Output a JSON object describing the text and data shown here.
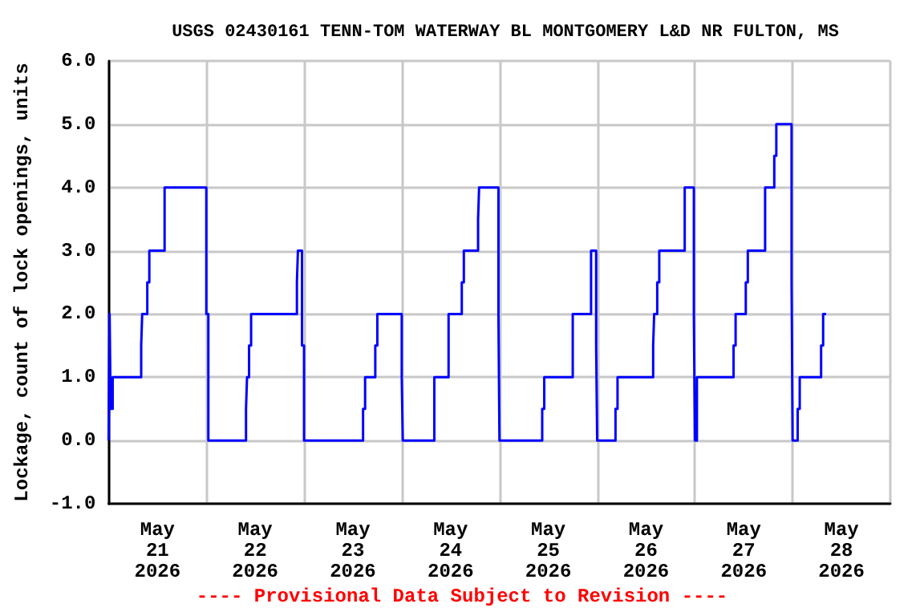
{
  "chart_data": {
    "type": "step",
    "title": "USGS 02430161 TENN-TOM WATERWAY BL MONTGOMERY L&D NR FULTON, MS",
    "ylabel": "Lockage, count of lock openings, units",
    "annotations": [
      "---- Provisional Data Subject to Revision ----"
    ],
    "x": [
      "2026-05-21T00:00",
      "2026-05-21T00:15",
      "2026-05-21T00:30",
      "2026-05-21T01:00",
      "2026-05-21T08:00",
      "2026-05-21T08:15",
      "2026-05-21T09:30",
      "2026-05-21T10:00",
      "2026-05-21T13:45",
      "2026-05-22T00:00",
      "2026-05-22T00:30",
      "2026-05-22T09:45",
      "2026-05-22T10:00",
      "2026-05-22T10:30",
      "2026-05-22T11:00",
      "2026-05-22T22:15",
      "2026-05-22T22:30",
      "2026-05-22T23:30",
      "2026-05-23T00:00",
      "2026-05-23T14:30",
      "2026-05-23T15:00",
      "2026-05-23T17:30",
      "2026-05-23T18:00",
      "2026-05-24T00:00",
      "2026-05-24T00:15",
      "2026-05-24T08:00",
      "2026-05-24T11:30",
      "2026-05-24T14:45",
      "2026-05-24T15:15",
      "2026-05-24T18:45",
      "2026-05-24T19:00",
      "2026-05-24T23:45",
      "2026-05-25T00:00",
      "2026-05-25T10:30",
      "2026-05-25T11:00",
      "2026-05-25T18:00",
      "2026-05-25T22:30",
      "2026-05-25T23:45",
      "2026-05-26T00:00",
      "2026-05-26T04:30",
      "2026-05-26T05:00",
      "2026-05-26T13:45",
      "2026-05-26T14:00",
      "2026-05-26T14:45",
      "2026-05-26T15:15",
      "2026-05-26T21:30",
      "2026-05-26T23:45",
      "2026-05-27T00:00",
      "2026-05-27T00:30",
      "2026-05-27T09:30",
      "2026-05-27T10:00",
      "2026-05-27T12:30",
      "2026-05-27T13:00",
      "2026-05-27T17:15",
      "2026-05-27T19:30",
      "2026-05-27T20:00",
      "2026-05-27T23:45",
      "2026-05-28T00:00",
      "2026-05-28T01:15",
      "2026-05-28T01:45",
      "2026-05-28T07:00",
      "2026-05-28T07:30",
      "2026-05-28T08:15"
    ],
    "series": [
      {
        "color": "#0000ff",
        "values": [
          0,
          2,
          0.5,
          1,
          1.5,
          2,
          2.5,
          3,
          4,
          2,
          0,
          0.5,
          1,
          1.5,
          2,
          2.5,
          3,
          1.5,
          0,
          0.5,
          1,
          1.5,
          2,
          1,
          0,
          1,
          2,
          2.5,
          3,
          3.5,
          4,
          2,
          0,
          0.5,
          1,
          2,
          3,
          1.5,
          0,
          0.5,
          1,
          1.5,
          2,
          2.5,
          3,
          4,
          2,
          0,
          1,
          1.5,
          2,
          2.5,
          3,
          4,
          4.5,
          5,
          2.5,
          0,
          0.5,
          1,
          1.5,
          2,
          2
        ]
      }
    ],
    "xlim": [
      "2026-05-21T00:00",
      "2026-05-29T00:00"
    ],
    "xticks": [
      {
        "value": "2026-05-21T00:00",
        "label": null
      },
      {
        "value": "2026-05-21T12:00",
        "label": "May\n21\n2026"
      },
      {
        "value": "2026-05-22T00:00",
        "label": null
      },
      {
        "value": "2026-05-22T12:00",
        "label": "May\n22\n2026"
      },
      {
        "value": "2026-05-23T00:00",
        "label": null
      },
      {
        "value": "2026-05-23T12:00",
        "label": "May\n23\n2026"
      },
      {
        "value": "2026-05-24T00:00",
        "label": null
      },
      {
        "value": "2026-05-24T12:00",
        "label": "May\n24\n2026"
      },
      {
        "value": "2026-05-25T00:00",
        "label": null
      },
      {
        "value": "2026-05-25T12:00",
        "label": "May\n25\n2026"
      },
      {
        "value": "2026-05-26T00:00",
        "label": null
      },
      {
        "value": "2026-05-26T12:00",
        "label": "May\n26\n2026"
      },
      {
        "value": "2026-05-27T00:00",
        "label": null
      },
      {
        "value": "2026-05-27T12:00",
        "label": "May\n27\n2026"
      },
      {
        "value": "2026-05-28T00:00",
        "label": null
      },
      {
        "value": "2026-05-28T12:00",
        "label": "May\n28\n2026"
      },
      {
        "value": "2026-05-29T00:00",
        "label": null
      }
    ],
    "ylim": [
      -1,
      6
    ],
    "yticks": [
      {
        "value": -1,
        "label": "-1.0"
      },
      {
        "value": 0,
        "label": "0.0"
      },
      {
        "value": 1,
        "label": "1.0"
      },
      {
        "value": 2,
        "label": "2.0"
      },
      {
        "value": 3,
        "label": "3.0"
      },
      {
        "value": 4,
        "label": "4.0"
      },
      {
        "value": 5,
        "label": "5.0"
      },
      {
        "value": 6,
        "label": "6.0"
      }
    ],
    "grid": true,
    "marker": "none",
    "line_style": "solid"
  }
}
